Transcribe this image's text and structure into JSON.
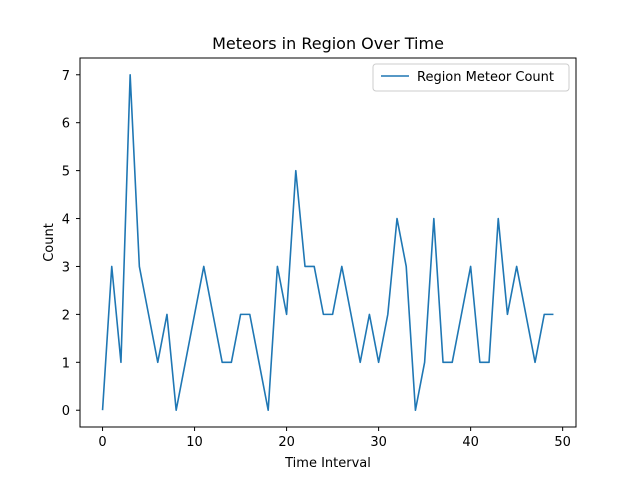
{
  "chart_data": {
    "type": "line",
    "title": "Meteors in Region Over Time",
    "xlabel": "Time Interval",
    "ylabel": "Count",
    "xlim": [
      -2.45,
      51.45
    ],
    "ylim": [
      -0.35,
      7.35
    ],
    "xticks": [
      0,
      10,
      20,
      30,
      40,
      50
    ],
    "yticks": [
      0,
      1,
      2,
      3,
      4,
      5,
      6,
      7
    ],
    "grid": false,
    "legend_position": "upper right",
    "series": [
      {
        "name": "Region Meteor Count",
        "color": "#1f77b4",
        "x": [
          0,
          1,
          2,
          3,
          4,
          5,
          6,
          7,
          8,
          9,
          10,
          11,
          12,
          13,
          14,
          15,
          16,
          17,
          18,
          19,
          20,
          21,
          22,
          23,
          24,
          25,
          26,
          27,
          28,
          29,
          30,
          31,
          32,
          33,
          34,
          35,
          36,
          37,
          38,
          39,
          40,
          41,
          42,
          43,
          44,
          45,
          46,
          47,
          48,
          49
        ],
        "y": [
          0,
          3,
          1,
          7,
          3,
          2,
          1,
          2,
          0,
          1,
          2,
          3,
          2,
          1,
          1,
          2,
          2,
          1,
          0,
          3,
          2,
          5,
          3,
          3,
          2,
          2,
          3,
          2,
          1,
          2,
          1,
          2,
          4,
          3,
          0,
          1,
          4,
          1,
          1,
          2,
          3,
          1,
          1,
          4,
          2,
          3,
          2,
          1,
          2,
          2
        ]
      }
    ]
  }
}
